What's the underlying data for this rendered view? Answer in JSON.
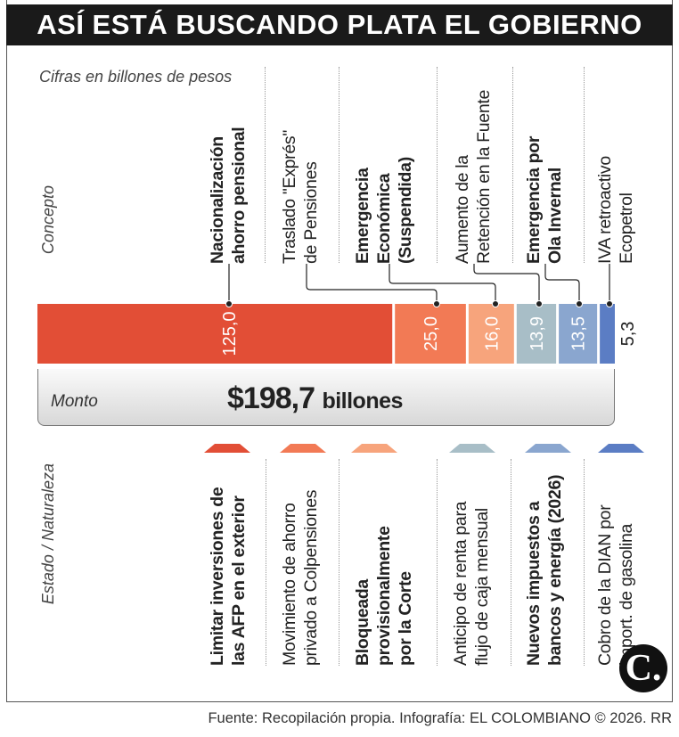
{
  "title": "ASÍ ESTÁ BUSCANDO PLATA EL GOBIERNO",
  "note": "Cifras en billones de pesos",
  "side_labels": {
    "concept": "Concepto",
    "status": "Estado / Naturaleza"
  },
  "total": {
    "label": "Monto",
    "value": "$198,7",
    "unit": "billones"
  },
  "footer": "Fuente: Recopilación propia. Infografía: EL COLOMBIANO © 2026. RR",
  "logo": "C.",
  "chart_data": {
    "type": "bar",
    "orientation": "horizontal-stacked",
    "unit": "billones de pesos",
    "categories": [
      "Nacionalización ahorro pensional",
      "Traslado \"Exprés\" de Pensiones",
      "Emergencia Económica (Suspendida)",
      "Aumento de la Retención en la Fuente",
      "Emergencia por Ola Invernal",
      "IVA retroactivo Ecopetrol"
    ],
    "values": [
      125.0,
      25.0,
      16.0,
      13.9,
      13.5,
      5.3
    ],
    "value_labels": [
      "125,0",
      "25,0",
      "16,0",
      "13,9",
      "13,5",
      "5,3"
    ],
    "colors": [
      "#e24e36",
      "#f27a55",
      "#f7a47c",
      "#a8bec7",
      "#8aa6cf",
      "#5b7dc4"
    ],
    "total": 198.7
  },
  "concepts": [
    {
      "lines": [
        "Nacionalización",
        "ahorro pensional"
      ],
      "bold": true
    },
    {
      "lines": [
        "Traslado \"Exprés\"",
        "de Pensiones"
      ],
      "bold": false
    },
    {
      "lines": [
        "Emergencia",
        "Económica",
        "(Suspendida)"
      ],
      "bold": true
    },
    {
      "lines": [
        "Aumento de la",
        "Retención en la Fuente"
      ],
      "bold": false
    },
    {
      "lines": [
        "Emergencia por",
        "Ola Invernal"
      ],
      "bold": true
    },
    {
      "lines": [
        "IVA retroactivo",
        "Ecopetrol"
      ],
      "bold": false
    }
  ],
  "statuses": [
    {
      "lines": [
        "Limitar inversiones de",
        "las AFP en el exterior"
      ],
      "bold": true
    },
    {
      "lines": [
        "Movimiento de ahorro",
        "privado a Colpensiones"
      ],
      "bold": false
    },
    {
      "lines": [
        "Bloqueada",
        "provisionalmente",
        "por la Corte"
      ],
      "bold": true
    },
    {
      "lines": [
        "Anticipo de renta para",
        "flujo de caja mensual"
      ],
      "bold": false
    },
    {
      "lines": [
        "Nuevos impuestos a",
        "bancos y energía (2026)"
      ],
      "bold": true
    },
    {
      "lines": [
        "Cobro de la DIAN por",
        "import. de gasolina"
      ],
      "bold": false
    }
  ]
}
